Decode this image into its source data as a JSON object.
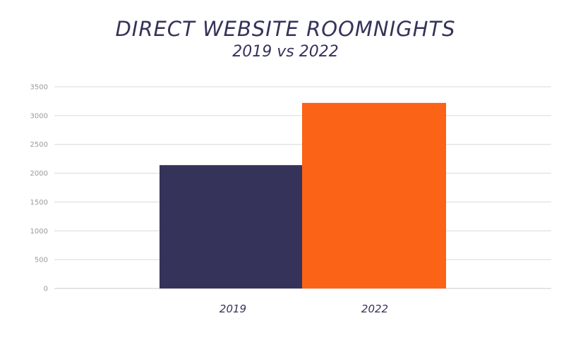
{
  "chart_data": {
    "type": "bar",
    "title": "DIRECT WEBSITE ROOMNIGHTS",
    "subtitle": "2019 vs 2022",
    "categories": [
      "2019",
      "2022"
    ],
    "values": [
      2140,
      3220
    ],
    "ylim": [
      0,
      3500
    ],
    "yticks": [
      0,
      500,
      1000,
      1500,
      2000,
      2500,
      3000,
      3500
    ],
    "grid": true,
    "colors": [
      "#35335a",
      "#fb6316"
    ],
    "xlabel": "",
    "ylabel": ""
  }
}
